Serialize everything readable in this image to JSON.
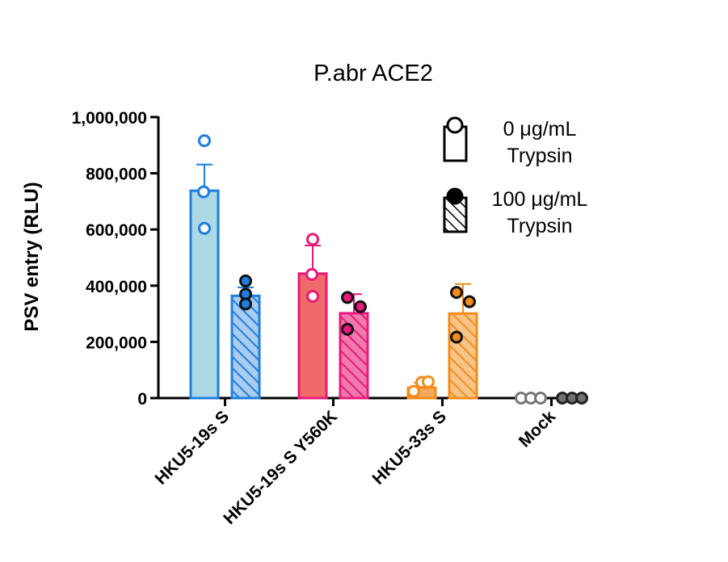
{
  "chart_data": {
    "type": "bar",
    "title": "P.abr ACE2",
    "xlabel": "",
    "ylabel": "PSV entry (RLU)",
    "ylim": [
      0,
      1000000
    ],
    "yticks": [
      0,
      200000,
      400000,
      600000,
      800000,
      1000000
    ],
    "ytick_labels": [
      "0",
      "200,000",
      "400,000",
      "600,000",
      "800,000",
      "1,000,000"
    ],
    "grid": false,
    "legend_position": "top-right",
    "categories": [
      "HKU5-19s S",
      "HKU5-19s S Y560K",
      "HKU5-33s S",
      "Mock"
    ],
    "category_colors": {
      "edge": [
        "#1E7FE0",
        "#E8197A",
        "#F58B18",
        "#707070"
      ],
      "fill_0": [
        "#ADD8E6",
        "#F06A6A",
        "#F5A95E",
        "#BDBDBD"
      ],
      "fill_100": [
        "#A9CCF0",
        "#F07AAE",
        "#F7C58A",
        "#808080"
      ]
    },
    "series": [
      {
        "name": "0 μg/mL Trypsin",
        "pattern": "open",
        "values": [
          738000,
          443000,
          37000,
          2000
        ],
        "error": [
          93000,
          100000,
          18000,
          0
        ],
        "points": [
          [
            916000,
            734000,
            604000
          ],
          [
            565000,
            440000,
            362000
          ],
          [
            24000,
            56000,
            58000
          ],
          [
            0,
            0,
            0
          ]
        ]
      },
      {
        "name": "100 μg/mL Trypsin",
        "pattern": "hatched",
        "values": [
          364000,
          302000,
          301000,
          2000
        ],
        "error": [
          30000,
          68000,
          105000,
          0
        ],
        "points": [
          [
            417000,
            370000,
            335000
          ],
          [
            358000,
            325000,
            245000
          ],
          [
            376000,
            343000,
            217000
          ],
          [
            0,
            0,
            0
          ]
        ]
      }
    ],
    "legend": [
      {
        "line1": "0 μg/mL",
        "line2": "Trypsin"
      },
      {
        "line1": "100 μg/mL",
        "line2": "Trypsin"
      }
    ]
  }
}
